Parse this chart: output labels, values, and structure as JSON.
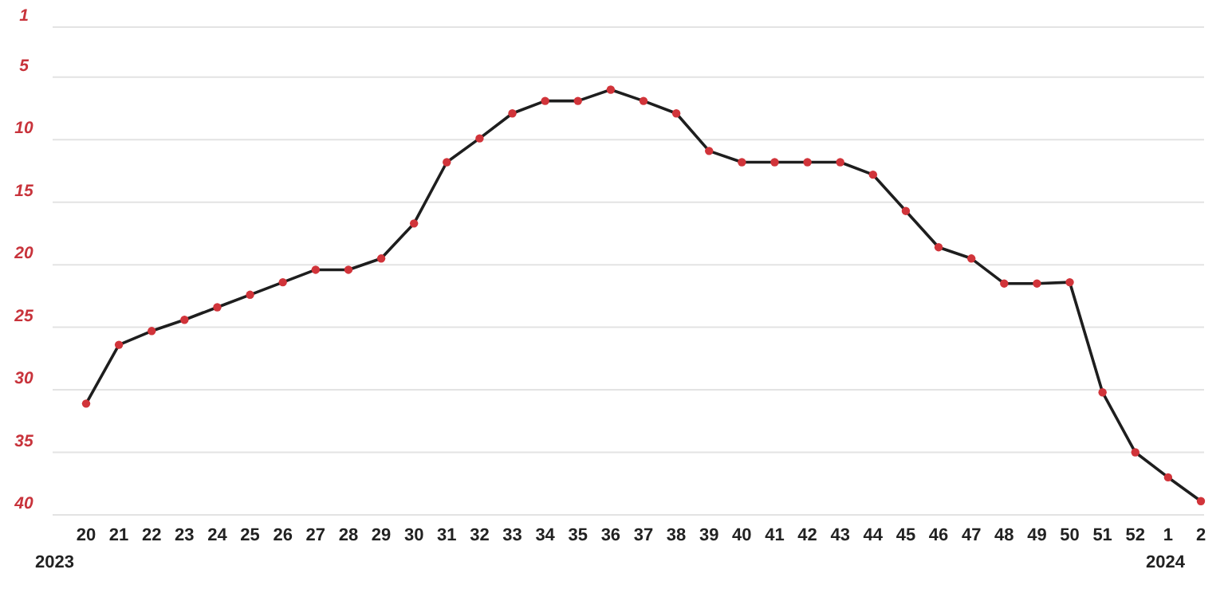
{
  "chart_data": {
    "type": "line",
    "categories": [
      "20",
      "21",
      "22",
      "23",
      "24",
      "25",
      "26",
      "27",
      "28",
      "29",
      "30",
      "31",
      "32",
      "33",
      "34",
      "35",
      "36",
      "37",
      "38",
      "39",
      "40",
      "41",
      "42",
      "43",
      "44",
      "45",
      "46",
      "47",
      "48",
      "49",
      "50",
      "51",
      "52",
      "1",
      "2"
    ],
    "series": [
      {
        "color": "#1e1e1e",
        "values": [
          31.1,
          26.4,
          25.3,
          24.4,
          23.4,
          22.4,
          21.4,
          20.4,
          20.4,
          19.5,
          16.7,
          11.8,
          9.9,
          7.9,
          6.9,
          6.9,
          6.0,
          6.9,
          7.9,
          10.9,
          11.8,
          11.8,
          11.8,
          11.8,
          12.8,
          15.7,
          18.6,
          19.5,
          21.5,
          21.5,
          21.4,
          30.2,
          35.0,
          37.0,
          38.9
        ]
      }
    ],
    "ylim": [
      40,
      1
    ],
    "yticks": [
      1,
      5,
      10,
      15,
      20,
      25,
      30,
      35,
      40
    ],
    "grid": "y",
    "marker": "circle",
    "line_style": "solid",
    "annotations": [
      "2023",
      "2024"
    ]
  }
}
